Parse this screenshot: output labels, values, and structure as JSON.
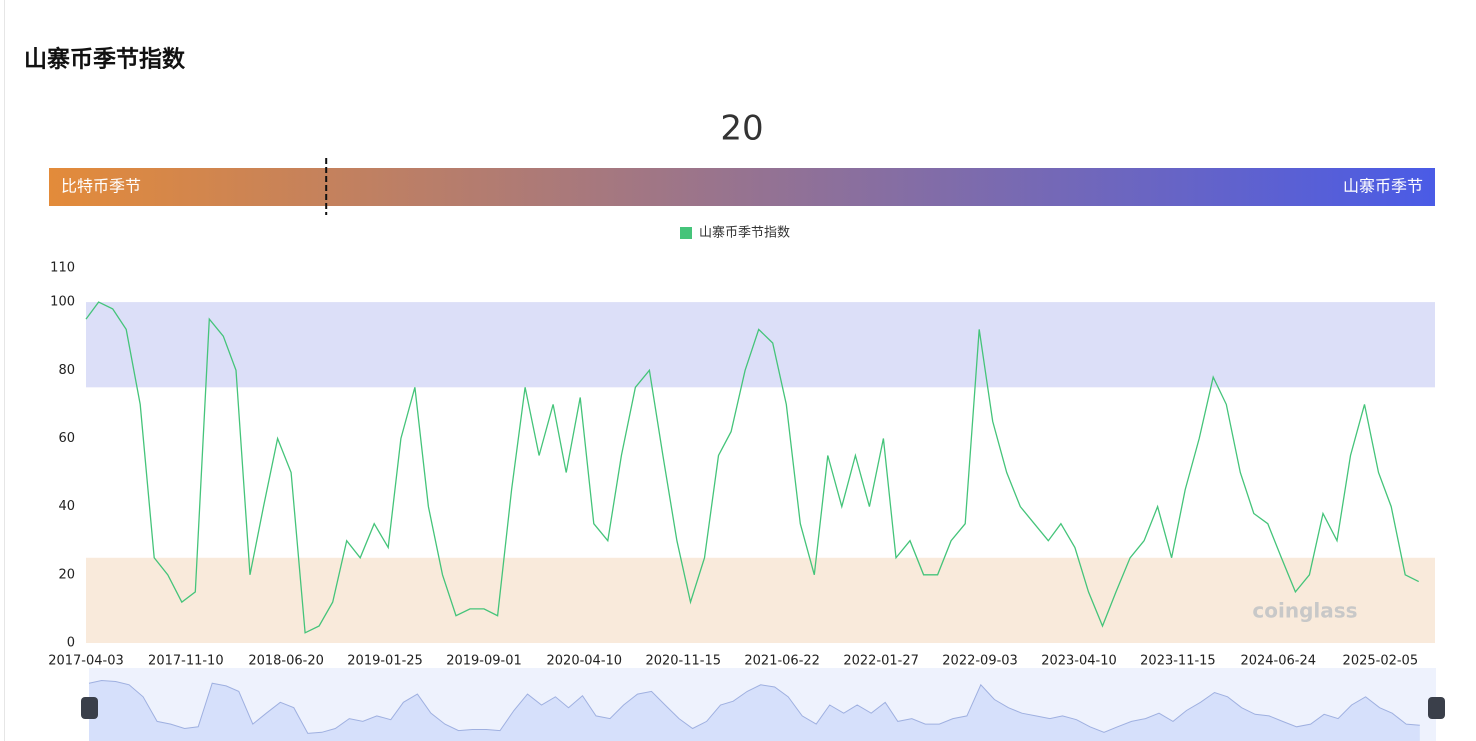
{
  "header": {
    "title": "山寨币季节指数"
  },
  "gauge": {
    "value": 20,
    "range": [
      0,
      100
    ],
    "left_label": "比特币季节",
    "right_label": "山寨币季节",
    "colors": [
      "#e38b3a",
      "#4a5be6"
    ]
  },
  "chart_data": {
    "type": "line",
    "x": [
      "2017-04-03",
      "2017-05-01",
      "2017-06-01",
      "2017-07-01",
      "2017-08-01",
      "2017-09-01",
      "2017-10-01",
      "2017-11-01",
      "2017-12-01",
      "2018-01-01",
      "2018-02-01",
      "2018-03-01",
      "2018-04-01",
      "2018-05-01",
      "2018-06-01",
      "2018-07-01",
      "2018-08-01",
      "2018-09-01",
      "2018-10-01",
      "2018-11-01",
      "2018-12-01",
      "2019-01-01",
      "2019-02-01",
      "2019-03-01",
      "2019-04-01",
      "2019-05-01",
      "2019-06-01",
      "2019-07-01",
      "2019-08-01",
      "2019-09-01",
      "2019-10-01",
      "2019-11-01",
      "2019-12-01",
      "2020-01-01",
      "2020-02-01",
      "2020-03-01",
      "2020-04-01",
      "2020-05-01",
      "2020-06-01",
      "2020-07-01",
      "2020-08-01",
      "2020-09-01",
      "2020-10-01",
      "2020-11-01",
      "2020-12-01",
      "2021-01-01",
      "2021-02-01",
      "2021-03-01",
      "2021-04-01",
      "2021-05-01",
      "2021-06-01",
      "2021-07-01",
      "2021-08-01",
      "2021-09-01",
      "2021-10-01",
      "2021-11-01",
      "2021-12-01",
      "2022-01-01",
      "2022-02-01",
      "2022-03-01",
      "2022-04-01",
      "2022-05-01",
      "2022-06-01",
      "2022-07-01",
      "2022-08-01",
      "2022-09-01",
      "2022-10-01",
      "2022-11-01",
      "2022-12-01",
      "2023-01-01",
      "2023-02-01",
      "2023-03-01",
      "2023-04-01",
      "2023-05-01",
      "2023-06-01",
      "2023-07-01",
      "2023-08-01",
      "2023-09-01",
      "2023-10-01",
      "2023-11-01",
      "2023-12-01",
      "2024-01-01",
      "2024-02-01",
      "2024-03-01",
      "2024-04-01",
      "2024-05-01",
      "2024-06-01",
      "2024-07-01",
      "2024-08-01",
      "2024-09-01",
      "2024-10-01",
      "2024-11-01",
      "2024-12-01",
      "2025-01-01",
      "2025-02-01",
      "2025-03-01",
      "2025-04-01",
      "2025-05-01"
    ],
    "series": [
      {
        "name": "山寨币季节指数",
        "color": "#45c47a",
        "values": [
          95,
          100,
          98,
          92,
          70,
          25,
          20,
          12,
          15,
          95,
          90,
          80,
          20,
          40,
          60,
          50,
          3,
          5,
          12,
          30,
          25,
          35,
          28,
          60,
          75,
          40,
          20,
          8,
          10,
          10,
          8,
          45,
          75,
          55,
          70,
          50,
          72,
          35,
          30,
          55,
          75,
          80,
          55,
          30,
          12,
          25,
          55,
          62,
          80,
          92,
          88,
          70,
          35,
          20,
          55,
          40,
          55,
          40,
          60,
          25,
          30,
          20,
          20,
          30,
          35,
          92,
          65,
          50,
          40,
          35,
          30,
          35,
          28,
          15,
          5,
          15,
          25,
          30,
          40,
          25,
          45,
          60,
          78,
          70,
          50,
          38,
          35,
          25,
          15,
          20,
          38,
          30,
          55,
          70,
          50,
          40,
          20,
          18
        ]
      }
    ],
    "xlim": [
      "2017-04-03",
      "2025-06-06"
    ],
    "xticks": [
      "2017-04-03",
      "2017-11-10",
      "2018-06-20",
      "2019-01-25",
      "2019-09-01",
      "2020-04-10",
      "2020-11-15",
      "2021-06-22",
      "2022-01-27",
      "2022-09-03",
      "2023-04-10",
      "2023-11-15",
      "2024-06-24",
      "2025-02-05"
    ],
    "ylim": [
      0,
      110
    ],
    "yticks": [
      0,
      20,
      40,
      60,
      80,
      100,
      110
    ],
    "bands": [
      {
        "from": 75,
        "to": 100,
        "color": "#dcdff8"
      },
      {
        "from": 0,
        "to": 25,
        "color": "#f9eadb"
      }
    ],
    "watermark": "coinglass"
  }
}
